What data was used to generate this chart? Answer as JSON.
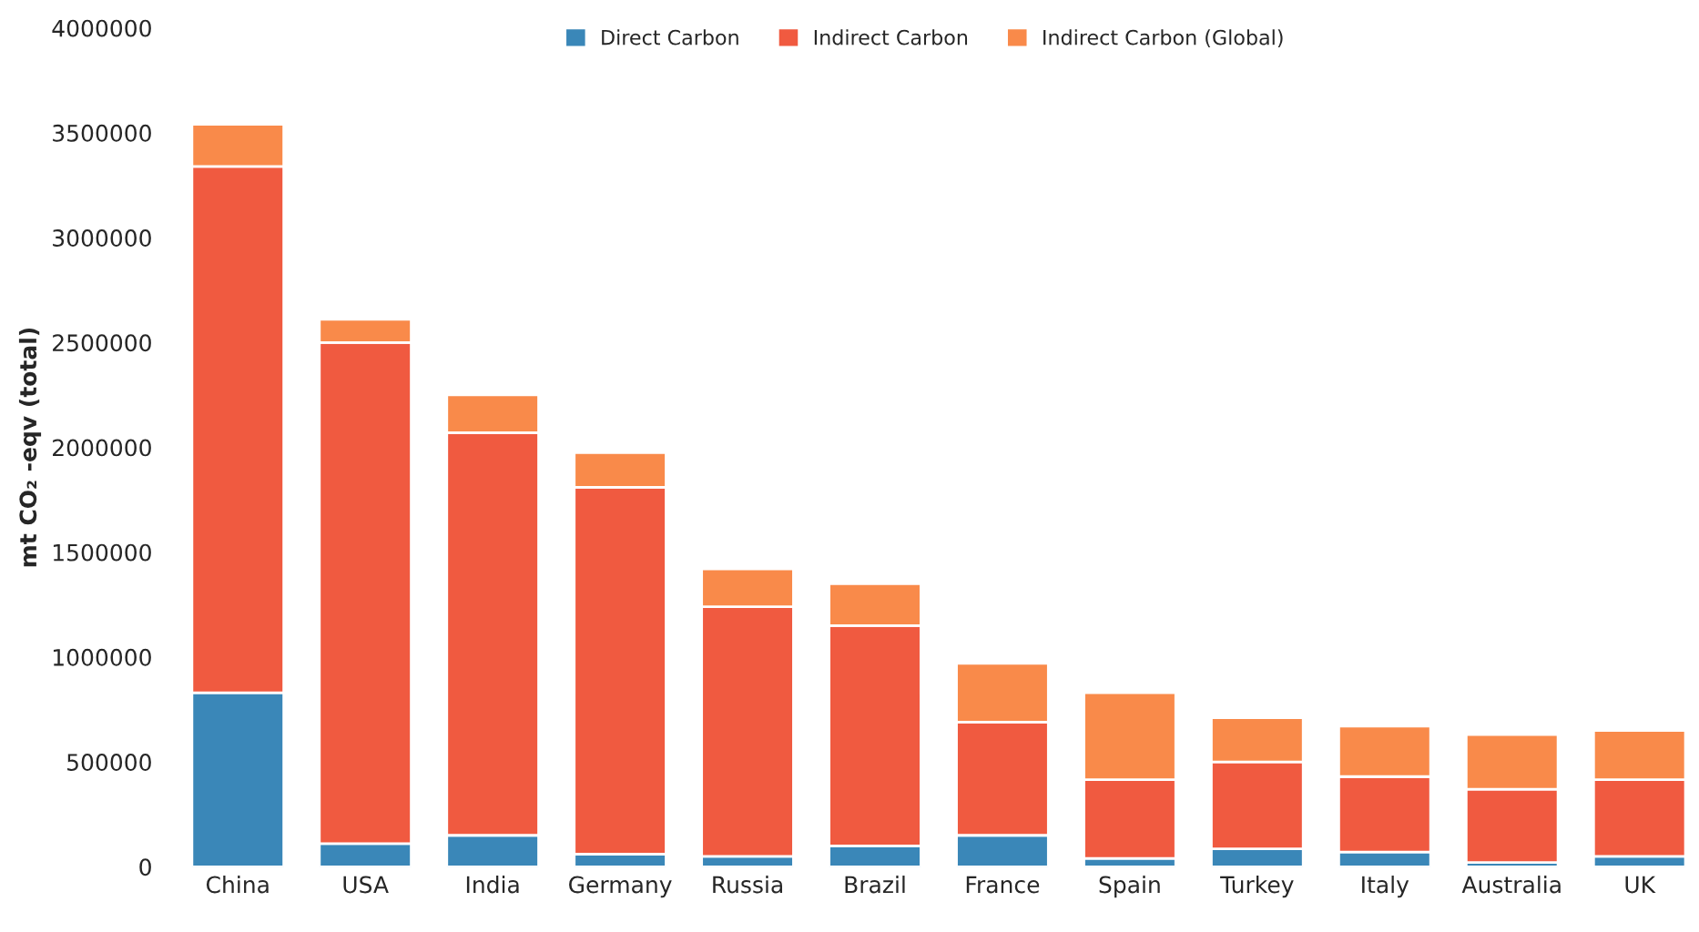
{
  "chart_data": {
    "type": "bar",
    "stacked": true,
    "ylabel": "mt CO₂ -eqv (total)",
    "categories": [
      "China",
      "USA",
      "India",
      "Germany",
      "Russia",
      "Brazil",
      "France",
      "Spain",
      "Turkey",
      "Italy",
      "Australia",
      "UK"
    ],
    "series": [
      {
        "name": "Direct Carbon",
        "color": "#3a87b8",
        "values": [
          830000,
          110000,
          150000,
          60000,
          50000,
          100000,
          150000,
          40000,
          85000,
          70000,
          20000,
          50000
        ]
      },
      {
        "name": "Indirect Carbon",
        "color": "#f05a40",
        "values": [
          2510000,
          2390000,
          1920000,
          1750000,
          1190000,
          1050000,
          540000,
          375000,
          415000,
          360000,
          350000,
          365000
        ]
      },
      {
        "name": "Indirect Carbon (Global)",
        "color": "#f98a4a",
        "values": [
          200000,
          110000,
          180000,
          165000,
          180000,
          200000,
          280000,
          415000,
          210000,
          240000,
          260000,
          235000
        ]
      }
    ],
    "ylim": [
      0,
      4000000
    ],
    "yticks": [
      0,
      500000,
      1000000,
      1500000,
      2000000,
      2500000,
      3000000,
      3500000,
      4000000
    ],
    "grid": false,
    "legend": "top"
  }
}
